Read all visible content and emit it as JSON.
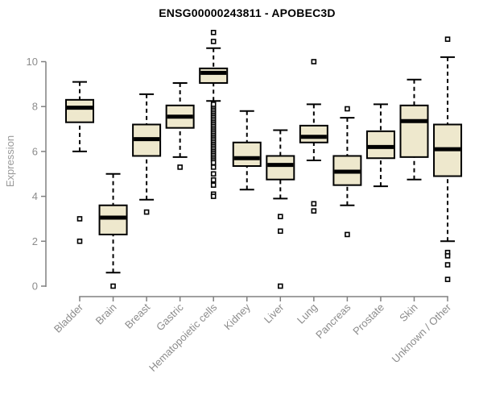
{
  "chart_data": {
    "type": "boxplot",
    "title": "ENSG00000243811 - APOBEC3D",
    "ylabel": "Expression",
    "xlabel": "",
    "yticks": [
      0,
      2,
      4,
      6,
      8,
      10
    ],
    "ylim": [
      0,
      11.5
    ],
    "grid": false,
    "legend": "none",
    "categories": [
      "Bladder",
      "Brain",
      "Breast",
      "Gastric",
      "Hematopoietic cells",
      "Kidney",
      "Liver",
      "Lung",
      "Pancreas",
      "Prostate",
      "Skin",
      "Unknown / Other"
    ],
    "series": [
      {
        "name": "Bladder",
        "low": 6.0,
        "q1": 7.3,
        "median": 7.95,
        "q3": 8.3,
        "high": 9.1,
        "outliers": [
          3.0,
          2.0
        ]
      },
      {
        "name": "Brain",
        "low": 0.6,
        "q1": 2.3,
        "median": 3.05,
        "q3": 3.6,
        "high": 5.0,
        "outliers": [
          0.0
        ]
      },
      {
        "name": "Breast",
        "low": 3.85,
        "q1": 5.8,
        "median": 6.55,
        "q3": 7.2,
        "high": 8.55,
        "outliers": [
          3.3
        ]
      },
      {
        "name": "Gastric",
        "low": 5.75,
        "q1": 7.05,
        "median": 7.55,
        "q3": 8.05,
        "high": 9.05,
        "outliers": [
          5.3
        ]
      },
      {
        "name": "Hematopoietic cells",
        "low": 8.25,
        "q1": 9.05,
        "median": 9.5,
        "q3": 9.7,
        "high": 10.6,
        "outliers": [
          11.3,
          10.9,
          5.5,
          5.3,
          5.0,
          4.73,
          4.5,
          4.1,
          4.0
        ],
        "dense_outliers": {
          "min": 5.6,
          "max": 8.1,
          "count": 32
        }
      },
      {
        "name": "Kidney",
        "low": 4.3,
        "q1": 5.35,
        "median": 5.7,
        "q3": 6.4,
        "high": 7.8,
        "outliers": []
      },
      {
        "name": "Liver",
        "low": 3.9,
        "q1": 4.75,
        "median": 5.4,
        "q3": 5.8,
        "high": 6.95,
        "outliers": [
          3.1,
          2.45,
          0.0
        ]
      },
      {
        "name": "Lung",
        "low": 5.6,
        "q1": 6.4,
        "median": 6.65,
        "q3": 7.15,
        "high": 8.1,
        "outliers": [
          10.0,
          3.67,
          3.35
        ]
      },
      {
        "name": "Pancreas",
        "low": 3.6,
        "q1": 4.5,
        "median": 5.1,
        "q3": 5.8,
        "high": 7.5,
        "outliers": [
          7.9,
          2.3
        ]
      },
      {
        "name": "Prostate",
        "low": 4.45,
        "q1": 5.7,
        "median": 6.2,
        "q3": 6.9,
        "high": 8.1,
        "outliers": []
      },
      {
        "name": "Skin",
        "low": 4.75,
        "q1": 5.75,
        "median": 7.35,
        "q3": 8.05,
        "high": 9.2,
        "outliers": []
      },
      {
        "name": "Unknown / Other",
        "low": 2.0,
        "q1": 4.9,
        "median": 6.1,
        "q3": 7.2,
        "high": 10.2,
        "outliers": [
          11.0,
          1.5,
          1.35,
          0.95,
          0.3
        ]
      }
    ],
    "colors": {
      "box_fill": "#EEE8CD",
      "box_border": "#000000",
      "median": "#000000",
      "whisker": "#000000",
      "outlier_fill": "#FFFFFF",
      "axis": "#808080",
      "tick_label": "#8C8C8C",
      "title": "#000000"
    }
  }
}
